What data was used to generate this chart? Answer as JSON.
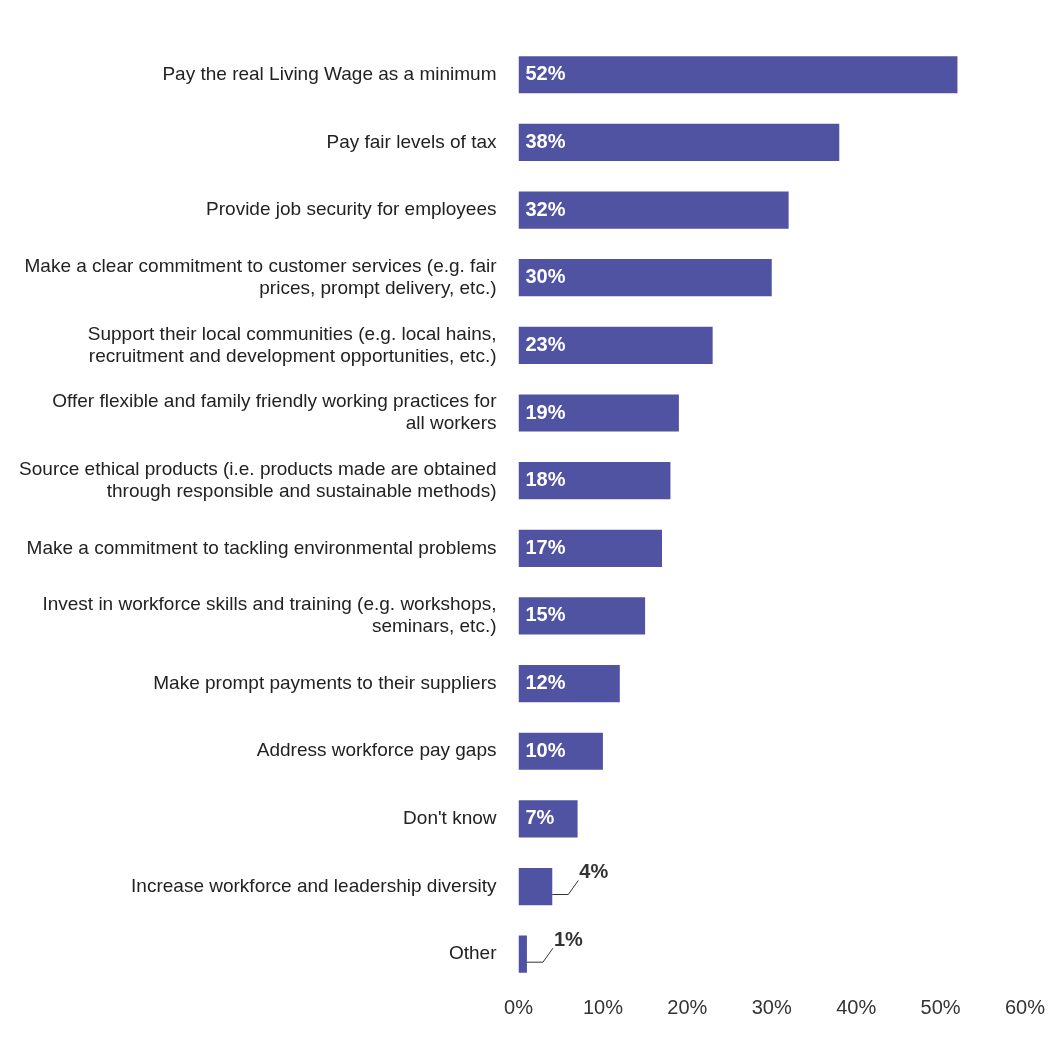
{
  "chart_data": {
    "type": "bar",
    "orientation": "horizontal",
    "categories": [
      "Pay the real Living Wage as a minimum",
      "Pay fair levels of tax",
      "Provide job security for employees",
      "Make a clear commitment to customer services (e.g. fair prices, prompt delivery, etc.)",
      "Support their local communities (e.g. local hains, recruitment and development opportunities, etc.)",
      "Offer flexible and family friendly working practices for all workers",
      "Source ethical products (i.e. products made are obtained through responsible and sustainable methods)",
      "Make a commitment to tackling environmental problems",
      "Invest in workforce skills and training (e.g. workshops, seminars, etc.)",
      "Make prompt payments to their suppliers",
      "Address workforce pay gaps",
      "Don't know",
      "Increase workforce and leadership diversity",
      "Other"
    ],
    "values": [
      52,
      38,
      32,
      30,
      23,
      19,
      18,
      17,
      15,
      12,
      10,
      7,
      4,
      1
    ],
    "value_labels": [
      "52%",
      "38%",
      "32%",
      "30%",
      "23%",
      "19%",
      "18%",
      "17%",
      "15%",
      "12%",
      "10%",
      "7%",
      "4%",
      "1%"
    ],
    "color": "#4f53a2",
    "xlim": [
      0,
      60
    ],
    "xticks": [
      {
        "value": 0,
        "label": "0%"
      },
      {
        "value": 10,
        "label": "10%"
      },
      {
        "value": 20,
        "label": "20%"
      },
      {
        "value": 30,
        "label": "30%"
      },
      {
        "value": 40,
        "label": "40%"
      },
      {
        "value": 50,
        "label": "50%"
      },
      {
        "value": 60,
        "label": "60%"
      }
    ],
    "grid": false,
    "legend": false
  }
}
